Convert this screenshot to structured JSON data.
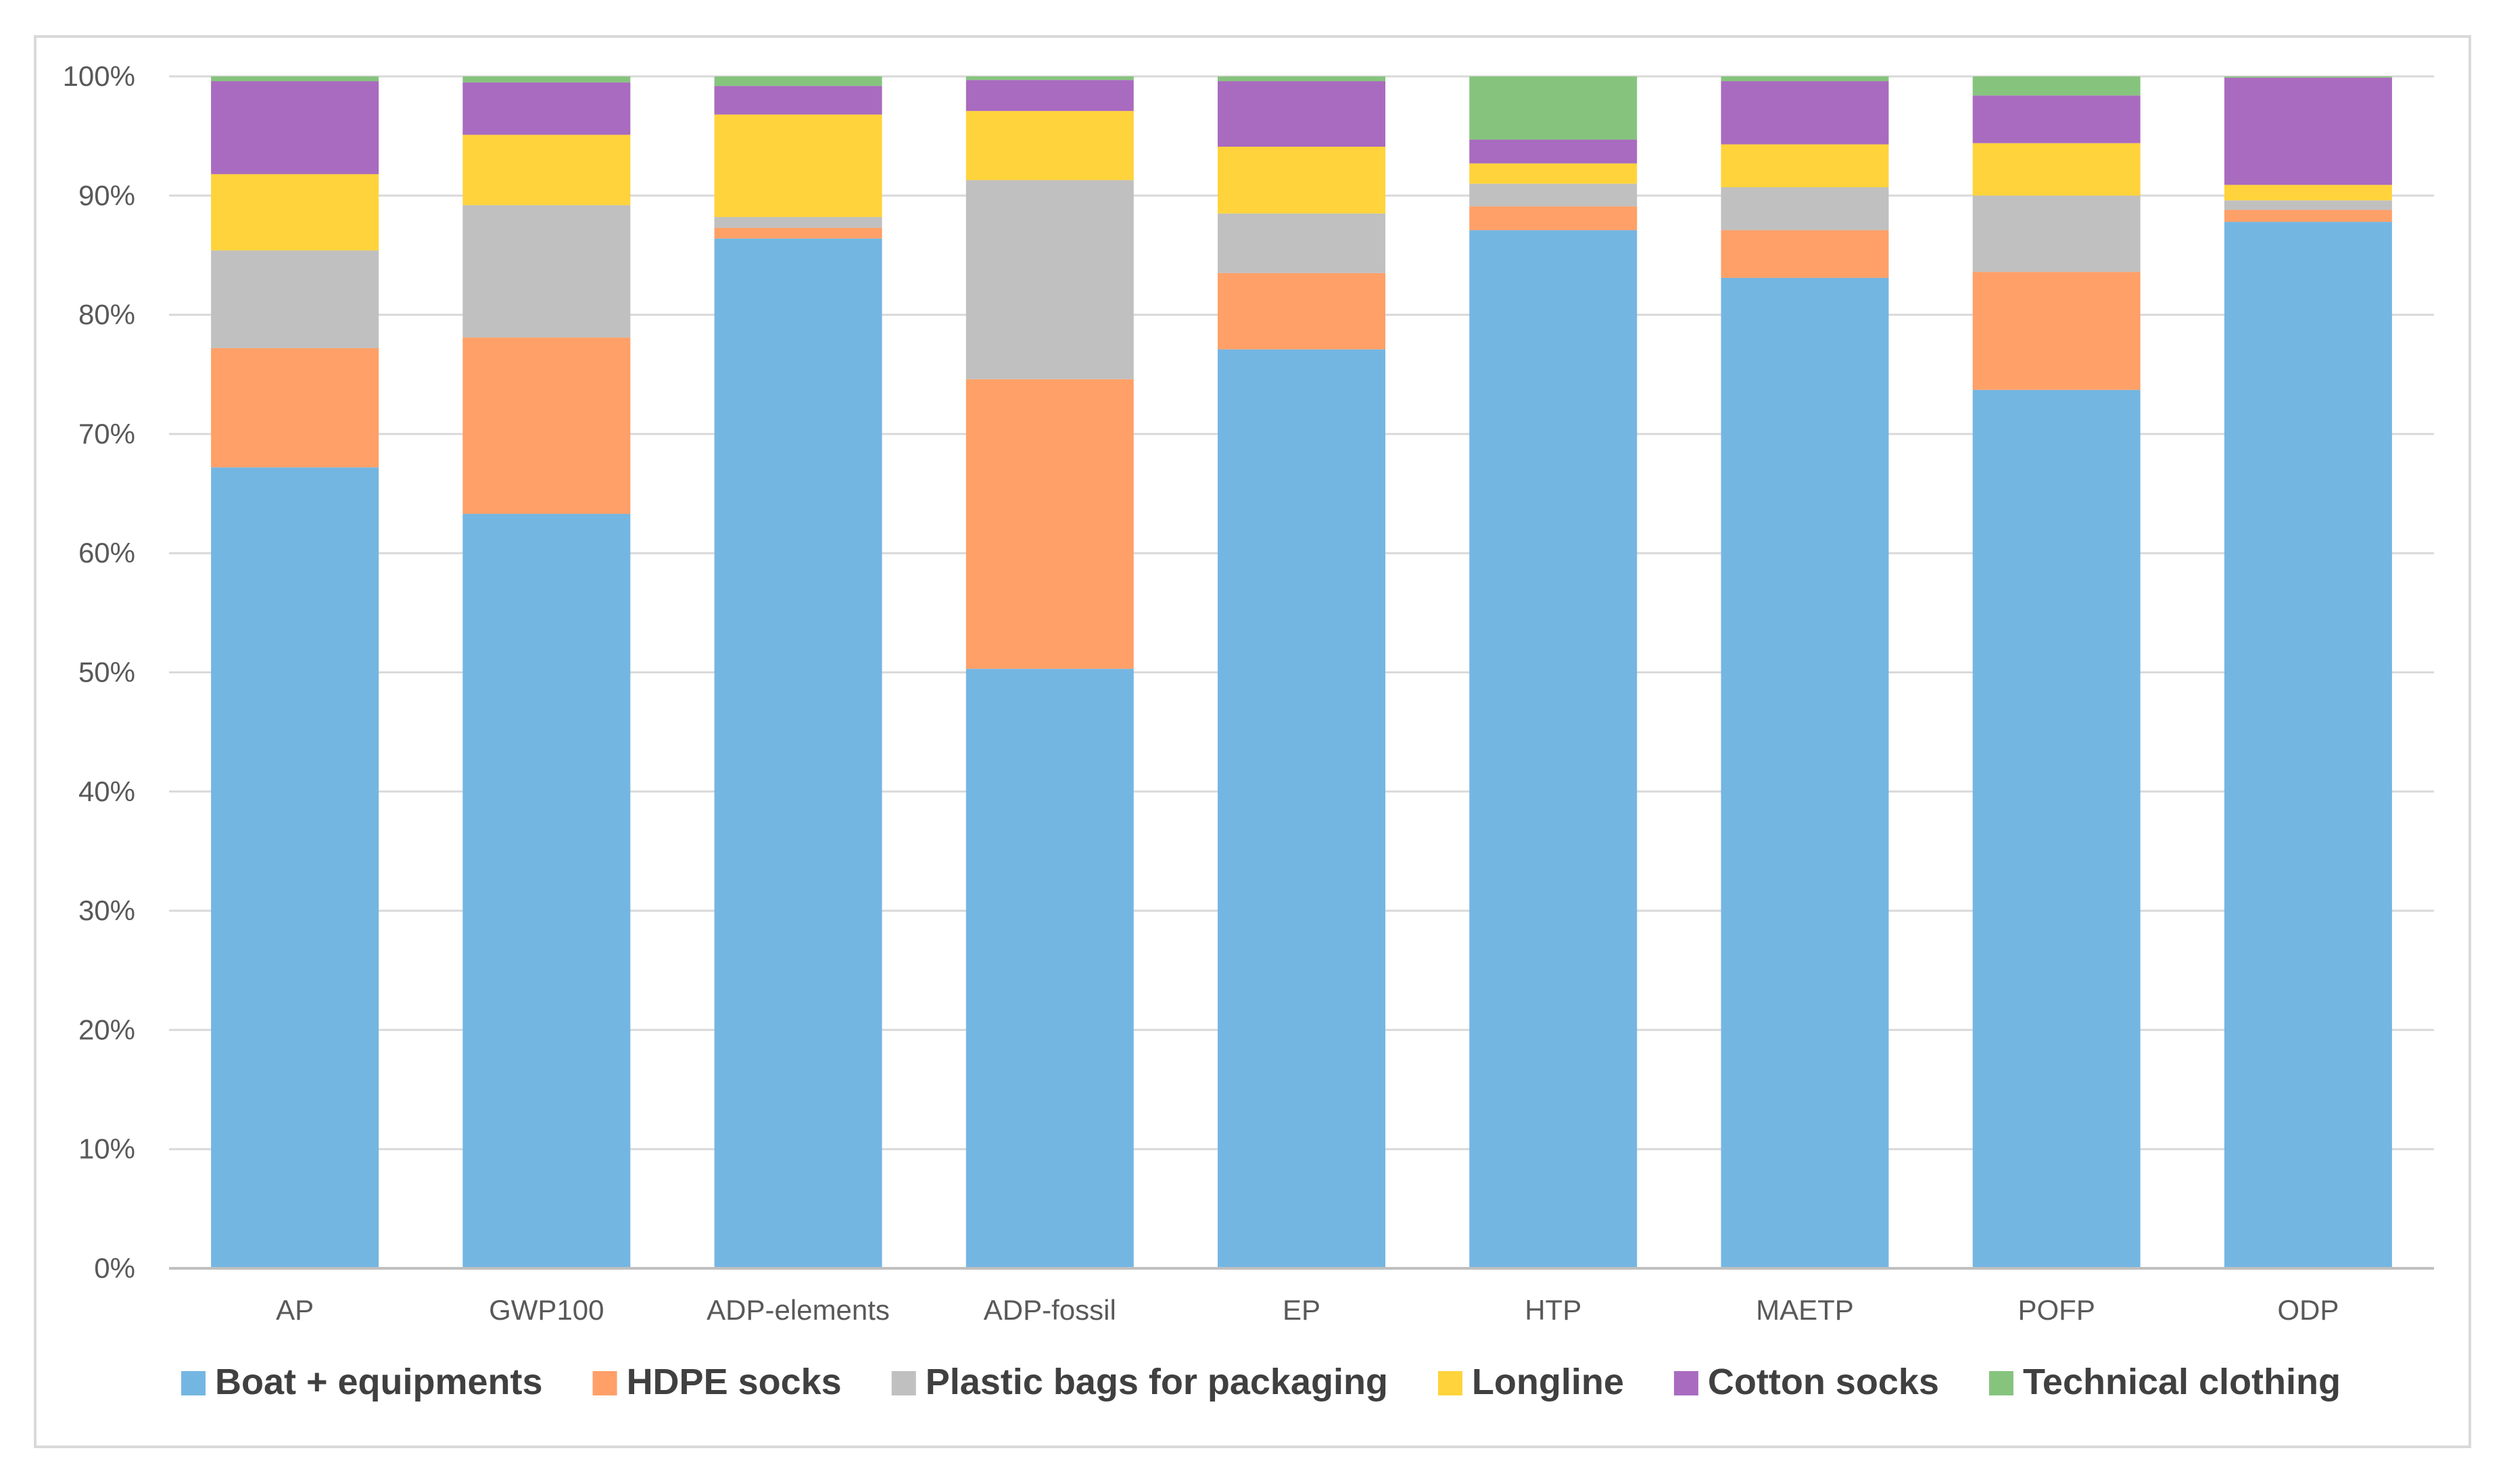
{
  "chart_data": {
    "type": "bar",
    "stacked": true,
    "percent": true,
    "title": "",
    "xlabel": "",
    "ylabel": "",
    "ylim": [
      0,
      100
    ],
    "y_ticks": [
      "0%",
      "10%",
      "20%",
      "30%",
      "40%",
      "50%",
      "60%",
      "70%",
      "80%",
      "90%",
      "100%"
    ],
    "grid": true,
    "legend_position": "bottom",
    "categories": [
      "AP",
      "GWP100",
      "ADP-elements",
      "ADP-fossil",
      "EP",
      "HTP",
      "MAETP",
      "POFP",
      "ODP"
    ],
    "series": [
      {
        "name": "Boat + equipments",
        "color": "#74b6e2",
        "values": [
          67.2,
          63.3,
          86.4,
          50.3,
          77.1,
          87.1,
          83.1,
          73.7,
          87.8
        ]
      },
      {
        "name": "HDPE socks",
        "color": "#fea068",
        "values": [
          10.0,
          14.8,
          0.9,
          24.3,
          6.4,
          2.0,
          4.0,
          9.9,
          1.0
        ]
      },
      {
        "name": "Plastic bags for packaging",
        "color": "#c0c0c0",
        "values": [
          8.2,
          11.1,
          0.9,
          16.7,
          5.0,
          1.9,
          3.6,
          6.4,
          0.8
        ]
      },
      {
        "name": "Longline",
        "color": "#ffd33b",
        "values": [
          6.4,
          5.9,
          8.6,
          5.8,
          5.6,
          1.7,
          3.6,
          4.4,
          1.3
        ]
      },
      {
        "name": "Cotton socks",
        "color": "#a96bbf",
        "values": [
          7.8,
          4.4,
          2.4,
          2.6,
          5.5,
          2.0,
          5.3,
          4.0,
          9.0
        ]
      },
      {
        "name": "Technical clothing",
        "color": "#86c47e",
        "values": [
          0.4,
          0.5,
          0.8,
          0.3,
          0.4,
          5.3,
          0.4,
          1.6,
          0.1
        ]
      }
    ]
  }
}
